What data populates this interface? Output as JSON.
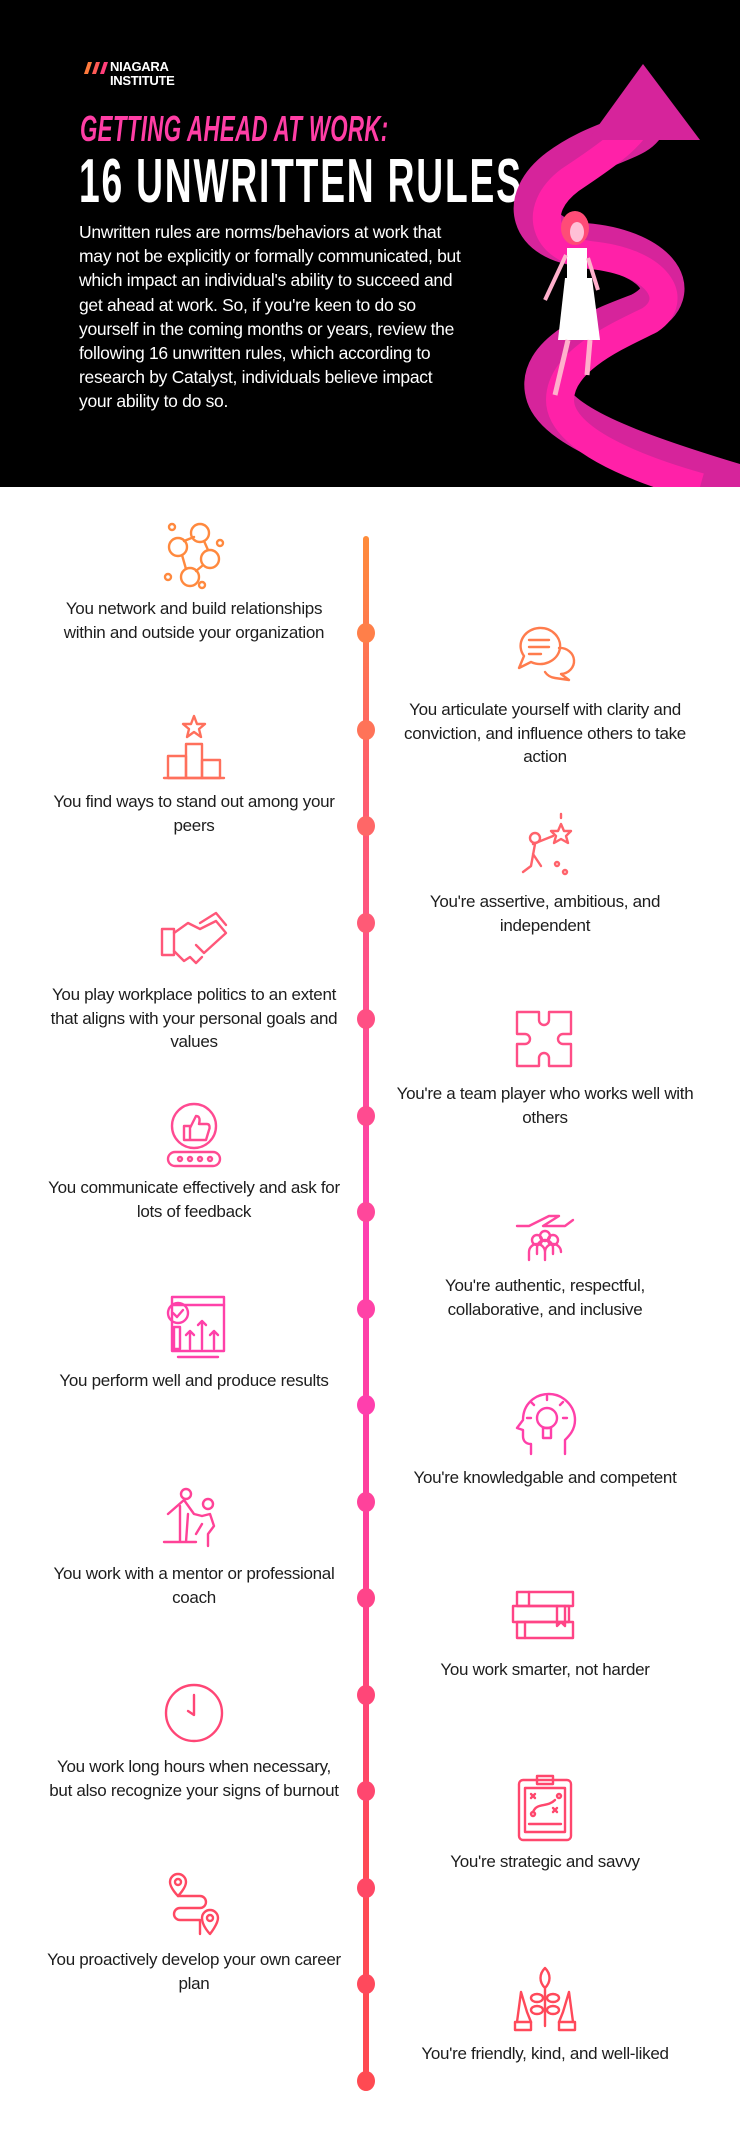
{
  "brand": {
    "name_line1": "NIAGARA",
    "name_line2": "INSTITUTE"
  },
  "header": {
    "kicker": "GETTING AHEAD AT WORK:",
    "title": "16 UNWRITTEN RULES",
    "intro": "Unwritten rules are norms/behaviors at work that may not be explicitly or formally communicated, but which impact an individual's ability to succeed and get ahead at work. So, if you're keen to do so yourself in the coming months or years, review the following 16 unwritten rules, which according to research by Catalyst, individuals believe impact your ability to do so."
  },
  "colors": {
    "accent_pink": "#ff3ea5",
    "timeline_top": "#ff8c3a",
    "timeline_mid": "#ff3fb0",
    "timeline_bottom": "#ff4a55",
    "background_header": "#000000"
  },
  "rules": [
    {
      "side": "left",
      "icon": "network-people-icon",
      "text": "You network and build relationships within and outside your organization"
    },
    {
      "side": "right",
      "icon": "speech-bubbles-icon",
      "text": "You articulate yourself with clarity and conviction, and influence others to take action"
    },
    {
      "side": "left",
      "icon": "podium-star-icon",
      "text": "You find ways to stand out among your peers"
    },
    {
      "side": "right",
      "icon": "reach-for-star-icon",
      "text": "You're assertive, ambitious, and independent"
    },
    {
      "side": "left",
      "icon": "handshake-icon",
      "text": "You play workplace politics to an extent that aligns with your personal goals and values"
    },
    {
      "side": "right",
      "icon": "puzzle-icon",
      "text": "You're a team player who works well with others"
    },
    {
      "side": "left",
      "icon": "thumbs-up-rating-icon",
      "text": "You communicate effectively and ask for lots of feedback"
    },
    {
      "side": "right",
      "icon": "hand-people-icon",
      "text": "You're authentic, respectful, collaborative, and inclusive"
    },
    {
      "side": "left",
      "icon": "performance-chart-icon",
      "text": "You perform well and produce results"
    },
    {
      "side": "right",
      "icon": "head-lightbulb-icon",
      "text": "You're knowledgable and competent"
    },
    {
      "side": "left",
      "icon": "mentor-climb-icon",
      "text": "You work with a mentor or professional coach"
    },
    {
      "side": "right",
      "icon": "books-icon",
      "text": "You work smarter, not harder"
    },
    {
      "side": "left",
      "icon": "clock-icon",
      "text": "You work long hours when necessary, but also recognize your signs of burnout"
    },
    {
      "side": "right",
      "icon": "strategy-clipboard-icon",
      "text": "You're strategic and savvy"
    },
    {
      "side": "left",
      "icon": "route-map-icon",
      "text": "You proactively develop your own career plan"
    },
    {
      "side": "right",
      "icon": "hands-plant-icon",
      "text": "You're friendly, kind, and well-liked"
    }
  ]
}
